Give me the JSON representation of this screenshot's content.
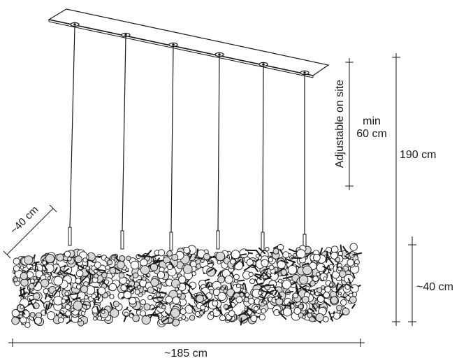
{
  "dimensions": {
    "depth": "~40 cm",
    "adjustable_note": "Adjustable on site",
    "min_line1": "min",
    "min_line2": "60 cm",
    "total_height": "190 cm",
    "body_height": "~40 cm",
    "width": "~185 cm"
  },
  "colors": {
    "ink": "#1a1a1a",
    "background": "#ffffff"
  },
  "fixture": {
    "pendant_count": 6
  }
}
